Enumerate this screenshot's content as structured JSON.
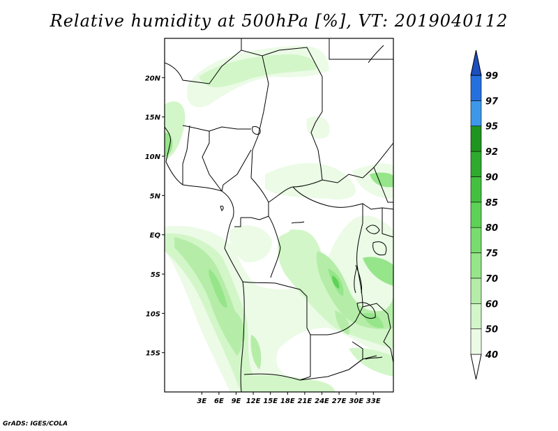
{
  "title": "Relative humidity at 500hPa [%], VT: 2019040112",
  "footer": "GrADS: IGES/COLA",
  "map": {
    "lon_range": [
      -3.5,
      36.5
    ],
    "lat_range": [
      -20,
      25
    ],
    "lat_ticks": [
      {
        "value": 20,
        "label": "20N"
      },
      {
        "value": 15,
        "label": "15N"
      },
      {
        "value": 10,
        "label": "10N"
      },
      {
        "value": 5,
        "label": "5N"
      },
      {
        "value": 0,
        "label": "EQ"
      },
      {
        "value": -5,
        "label": "5S"
      },
      {
        "value": -10,
        "label": "10S"
      },
      {
        "value": -15,
        "label": "15S"
      }
    ],
    "lon_ticks": [
      {
        "value": 3,
        "label": "3E"
      },
      {
        "value": 6,
        "label": "6E"
      },
      {
        "value": 9,
        "label": "9E"
      },
      {
        "value": 12,
        "label": "12E"
      },
      {
        "value": 15,
        "label": "15E"
      },
      {
        "value": 18,
        "label": "18E"
      },
      {
        "value": 21,
        "label": "21E"
      },
      {
        "value": 24,
        "label": "24E"
      },
      {
        "value": 27,
        "label": "27E"
      },
      {
        "value": 30,
        "label": "30E"
      },
      {
        "value": 33,
        "label": "33E"
      }
    ]
  },
  "colorbar": {
    "levels": [
      {
        "label": "40",
        "color": "#ebfbe6"
      },
      {
        "label": "50",
        "color": "#d2f6c8"
      },
      {
        "label": "60",
        "color": "#b5eda8"
      },
      {
        "label": "70",
        "color": "#96e58a"
      },
      {
        "label": "75",
        "color": "#78dd6e"
      },
      {
        "label": "80",
        "color": "#5dd256"
      },
      {
        "label": "85",
        "color": "#44c040"
      },
      {
        "label": "90",
        "color": "#2eaa2e"
      },
      {
        "label": "92",
        "color": "#1e951e"
      },
      {
        "label": "95",
        "color": "#3e98ea"
      },
      {
        "label": "97",
        "color": "#2570de"
      },
      {
        "label": "99",
        "color": "#1d4fc0"
      }
    ],
    "arrow_top_color": "#1d4fc0"
  }
}
